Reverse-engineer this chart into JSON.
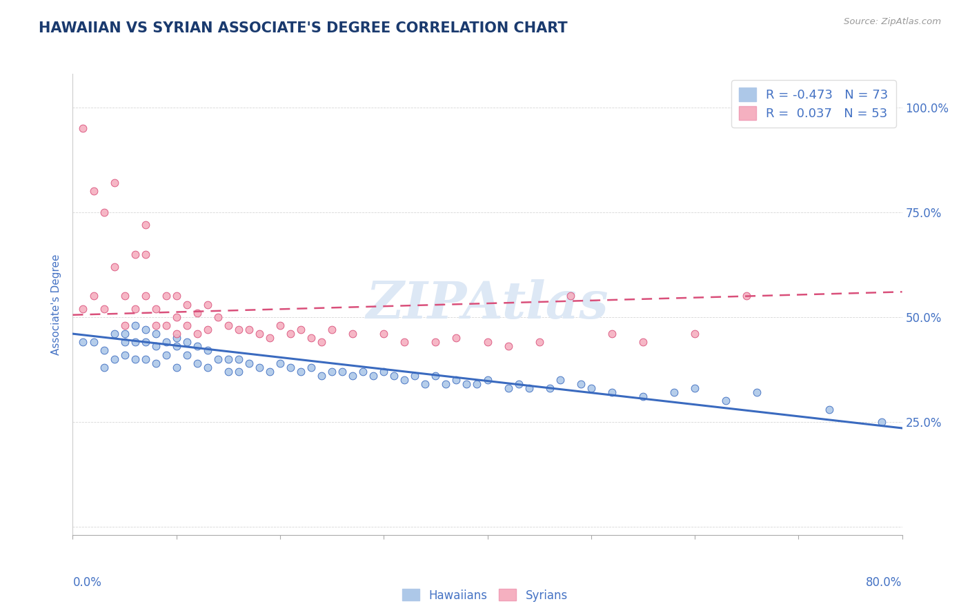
{
  "title": "HAWAIIAN VS SYRIAN ASSOCIATE'S DEGREE CORRELATION CHART",
  "source_text": "Source: ZipAtlas.com",
  "ylabel": "Associate's Degree",
  "yticks": [
    0.0,
    0.25,
    0.5,
    0.75,
    1.0
  ],
  "ytick_labels": [
    "",
    "25.0%",
    "50.0%",
    "75.0%",
    "100.0%"
  ],
  "xlim": [
    0.0,
    0.8
  ],
  "ylim": [
    -0.02,
    1.08
  ],
  "hawaiian_color": "#adc8e8",
  "syrian_color": "#f5b0c0",
  "hawaiian_line_color": "#3a6abf",
  "syrian_line_color": "#d94f7a",
  "legend_box_color_hawaiian": "#adc8e8",
  "legend_box_color_syrian": "#f5b0c0",
  "R_hawaiian": -0.473,
  "N_hawaiian": 73,
  "R_syrian": 0.037,
  "N_syrian": 53,
  "title_color": "#1a3a6e",
  "axis_label_color": "#4472c4",
  "hawaiian_x": [
    0.01,
    0.02,
    0.03,
    0.03,
    0.04,
    0.04,
    0.05,
    0.05,
    0.05,
    0.06,
    0.06,
    0.06,
    0.07,
    0.07,
    0.07,
    0.08,
    0.08,
    0.08,
    0.09,
    0.09,
    0.1,
    0.1,
    0.1,
    0.11,
    0.11,
    0.12,
    0.12,
    0.13,
    0.13,
    0.14,
    0.15,
    0.15,
    0.16,
    0.16,
    0.17,
    0.18,
    0.19,
    0.2,
    0.21,
    0.22,
    0.23,
    0.24,
    0.25,
    0.26,
    0.27,
    0.28,
    0.29,
    0.3,
    0.31,
    0.32,
    0.33,
    0.34,
    0.35,
    0.36,
    0.37,
    0.38,
    0.39,
    0.4,
    0.42,
    0.43,
    0.44,
    0.46,
    0.47,
    0.49,
    0.5,
    0.52,
    0.55,
    0.58,
    0.6,
    0.63,
    0.66,
    0.73,
    0.78
  ],
  "hawaiian_y": [
    0.44,
    0.44,
    0.42,
    0.38,
    0.46,
    0.4,
    0.46,
    0.44,
    0.41,
    0.48,
    0.44,
    0.4,
    0.47,
    0.44,
    0.4,
    0.46,
    0.43,
    0.39,
    0.44,
    0.41,
    0.45,
    0.43,
    0.38,
    0.44,
    0.41,
    0.43,
    0.39,
    0.42,
    0.38,
    0.4,
    0.4,
    0.37,
    0.4,
    0.37,
    0.39,
    0.38,
    0.37,
    0.39,
    0.38,
    0.37,
    0.38,
    0.36,
    0.37,
    0.37,
    0.36,
    0.37,
    0.36,
    0.37,
    0.36,
    0.35,
    0.36,
    0.34,
    0.36,
    0.34,
    0.35,
    0.34,
    0.34,
    0.35,
    0.33,
    0.34,
    0.33,
    0.33,
    0.35,
    0.34,
    0.33,
    0.32,
    0.31,
    0.32,
    0.33,
    0.3,
    0.32,
    0.28,
    0.25
  ],
  "syrian_x": [
    0.01,
    0.01,
    0.02,
    0.02,
    0.03,
    0.03,
    0.04,
    0.04,
    0.05,
    0.05,
    0.06,
    0.06,
    0.07,
    0.07,
    0.07,
    0.08,
    0.08,
    0.09,
    0.09,
    0.1,
    0.1,
    0.1,
    0.11,
    0.11,
    0.12,
    0.12,
    0.13,
    0.13,
    0.14,
    0.15,
    0.16,
    0.17,
    0.18,
    0.19,
    0.2,
    0.21,
    0.22,
    0.23,
    0.24,
    0.25,
    0.27,
    0.3,
    0.32,
    0.35,
    0.37,
    0.4,
    0.42,
    0.45,
    0.48,
    0.52,
    0.55,
    0.6,
    0.65
  ],
  "syrian_y": [
    0.52,
    0.95,
    0.8,
    0.55,
    0.75,
    0.52,
    0.82,
    0.62,
    0.55,
    0.48,
    0.65,
    0.52,
    0.72,
    0.65,
    0.55,
    0.52,
    0.48,
    0.55,
    0.48,
    0.55,
    0.5,
    0.46,
    0.53,
    0.48,
    0.51,
    0.46,
    0.53,
    0.47,
    0.5,
    0.48,
    0.47,
    0.47,
    0.46,
    0.45,
    0.48,
    0.46,
    0.47,
    0.45,
    0.44,
    0.47,
    0.46,
    0.46,
    0.44,
    0.44,
    0.45,
    0.44,
    0.43,
    0.44,
    0.55,
    0.46,
    0.44,
    0.46,
    0.55
  ],
  "trend_h_x0": 0.0,
  "trend_h_x1": 0.8,
  "trend_h_y0": 0.46,
  "trend_h_y1": 0.235,
  "trend_s_x0": 0.0,
  "trend_s_x1": 0.8,
  "trend_s_y0": 0.505,
  "trend_s_y1": 0.56
}
